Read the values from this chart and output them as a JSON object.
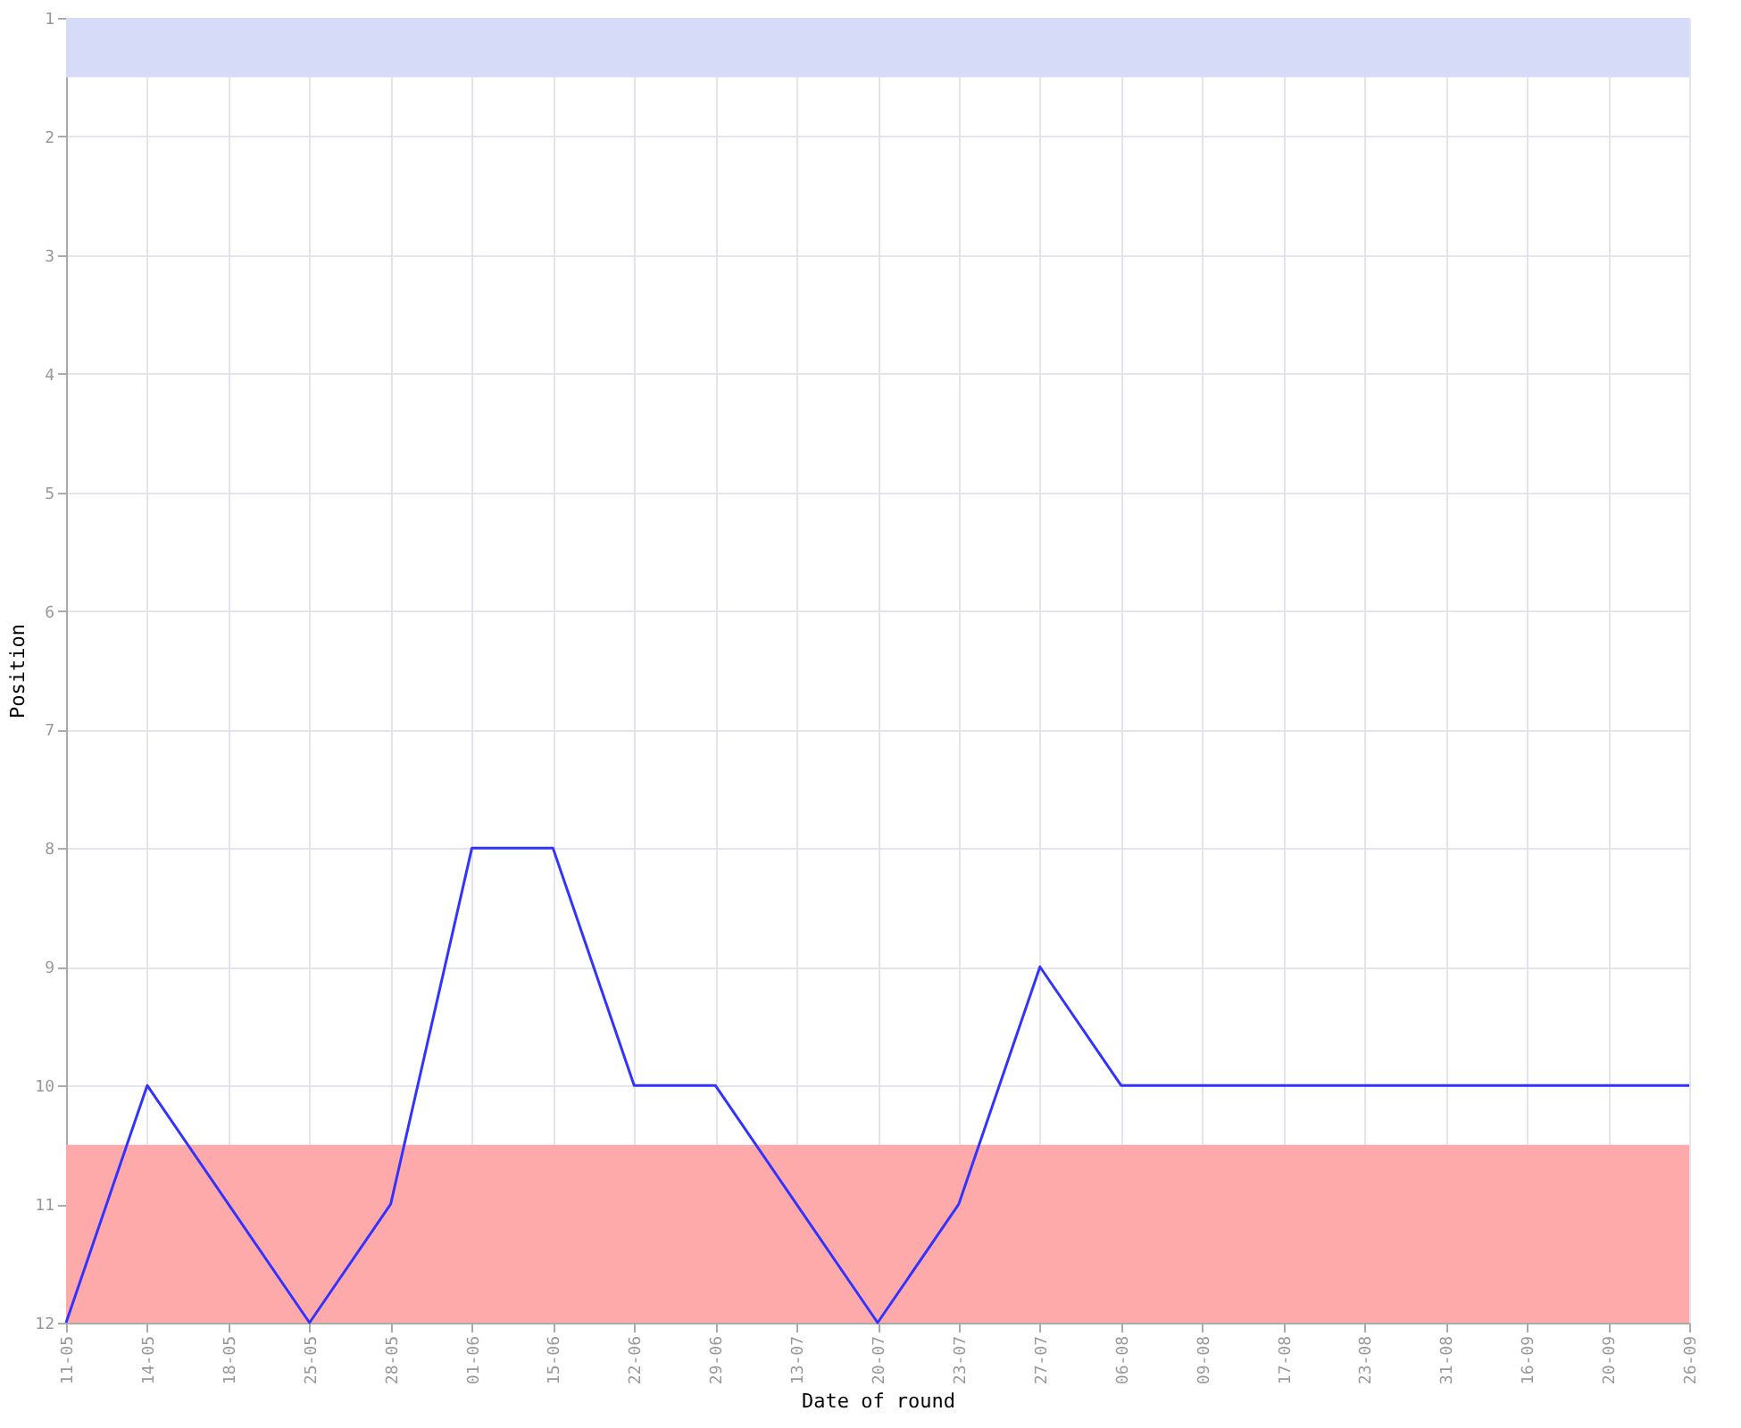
{
  "chart_data": {
    "type": "line",
    "xlabel": "Date of round",
    "ylabel": "Position",
    "categories": [
      "11-05",
      "14-05",
      "18-05",
      "25-05",
      "28-05",
      "01-06",
      "15-06",
      "22-06",
      "29-06",
      "13-07",
      "20-07",
      "23-07",
      "27-07",
      "06-08",
      "09-08",
      "17-08",
      "23-08",
      "31-08",
      "16-09",
      "20-09",
      "26-09"
    ],
    "series": [
      {
        "color": "#3333ff",
        "values": [
          12,
          10,
          11,
          12,
          11,
          8,
          8,
          10,
          10,
          11,
          12,
          11,
          9,
          10,
          10,
          10,
          10,
          10,
          10,
          10,
          10
        ]
      }
    ],
    "ylim": [
      12,
      1
    ],
    "yticks": [
      1,
      2,
      3,
      4,
      5,
      6,
      7,
      8,
      9,
      10,
      11,
      12
    ],
    "bands": [
      {
        "axis": "y",
        "from": 1,
        "to": 1.5,
        "color": "#d6dcf8"
      },
      {
        "axis": "y",
        "from": 10.5,
        "to": 12,
        "color": "#ffaaaa"
      }
    ],
    "grid": true,
    "marker": "none",
    "line_style": "solid"
  }
}
